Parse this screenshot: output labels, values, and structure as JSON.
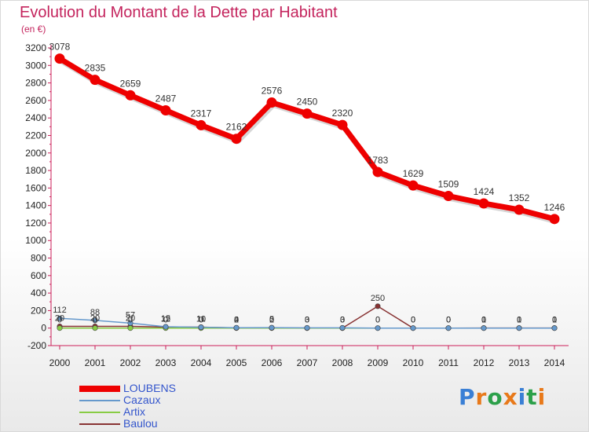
{
  "title": "Evolution du Montant de la Dette par Habitant",
  "unit": "(en €)",
  "chart_data": {
    "type": "line",
    "x": [
      2000,
      2001,
      2002,
      2003,
      2004,
      2005,
      2006,
      2007,
      2008,
      2009,
      2010,
      2011,
      2012,
      2013,
      2014
    ],
    "ylim": [
      -200,
      3200
    ],
    "yticks": [
      -200,
      0,
      200,
      400,
      600,
      800,
      1000,
      1200,
      1400,
      1600,
      1800,
      2000,
      2200,
      2400,
      2600,
      2800,
      3000,
      3200
    ],
    "series": [
      {
        "name": "LOUBENS",
        "color": "#ee0000",
        "values": [
          3078,
          2835,
          2659,
          2487,
          2317,
          2162,
          2576,
          2450,
          2320,
          1783,
          1629,
          1509,
          1424,
          1352,
          1246
        ],
        "labels": [
          "3078",
          "2835",
          "2659",
          "2487",
          "2317",
          "2162",
          "2576",
          "2450",
          "2320",
          "1783",
          "1629",
          "1509",
          "1424",
          "1352",
          "1246"
        ]
      },
      {
        "name": "Cazaux",
        "color": "#6699cc",
        "values": [
          112,
          88,
          57,
          15,
          10,
          4,
          5,
          3,
          3,
          0,
          0,
          0,
          0,
          0,
          0
        ],
        "labels": [
          "112",
          "88",
          "57",
          "15",
          "10",
          "4",
          "5",
          "3",
          "3",
          "0",
          "0",
          "0",
          "0",
          "0",
          "0"
        ]
      },
      {
        "name": "Artix",
        "color": "#88cc44",
        "values": [
          0,
          0,
          0,
          0,
          0,
          0,
          0,
          0,
          0,
          0,
          0,
          0,
          0,
          0,
          0
        ],
        "labels": [
          "0",
          "0",
          "0",
          "0",
          "0",
          "0",
          "0",
          "0",
          "0",
          "0",
          "0",
          "0",
          "0",
          "0",
          "0"
        ]
      },
      {
        "name": "Baulou",
        "color": "#883333",
        "values": [
          20,
          20,
          20,
          12,
          11,
          2,
          2,
          0,
          0,
          250,
          0,
          0,
          1,
          1,
          1
        ],
        "labels": [
          "20",
          "20",
          "20",
          "12",
          "11",
          "2",
          "2",
          "0",
          "0",
          "250",
          "0",
          "0",
          "1",
          "1",
          "1"
        ]
      }
    ]
  },
  "legend": [
    "LOUBENS",
    "Cazaux",
    "Artix",
    "Baulou"
  ],
  "logo": {
    "text": "Proxiti",
    "colors": [
      "#3a7fd5",
      "#e8791a",
      "#2ca04a",
      "#e8791a",
      "#3a7fd5",
      "#2ca04a",
      "#e8791a"
    ]
  }
}
